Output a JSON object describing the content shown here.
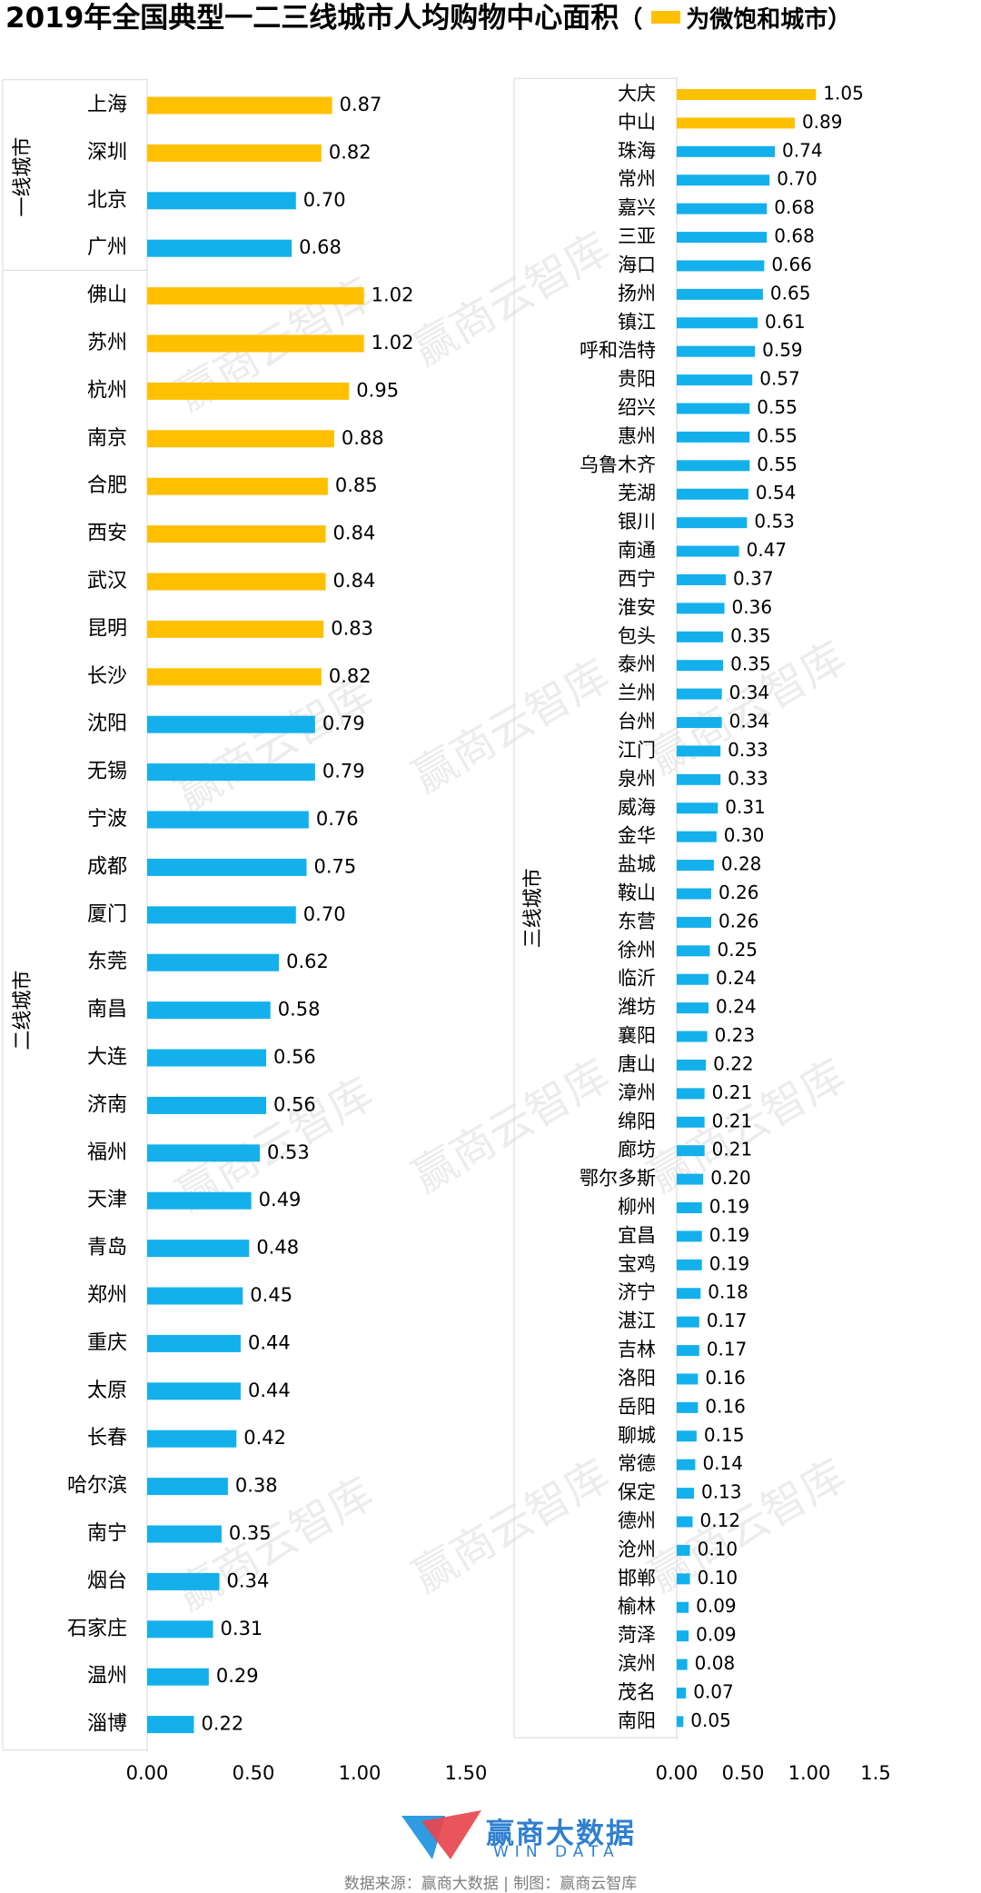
{
  "title": "2019年全国典型一二三线城市人均购物中心面积",
  "legend": {
    "paren_open": "（",
    "label": "为微饱和城市）",
    "color": "#FFC000"
  },
  "colors": {
    "saturated": "#FFC000",
    "normal": "#13B0EC"
  },
  "watermark": "赢商云智库",
  "brand": {
    "cn": "赢商大数据",
    "en": "WIN DATA"
  },
  "source": "数据来源：赢商大数据 | 制图：赢商云智库",
  "chart_data": [
    {
      "type": "bar",
      "orientation": "horizontal",
      "xlim": [
        0,
        1.5
      ],
      "xticks": [
        "0.00",
        "0.50",
        "1.00",
        "1.50"
      ],
      "groups": [
        {
          "label": "一线城市",
          "categories": [
            "上海",
            "深圳",
            "北京",
            "广州"
          ]
        },
        {
          "label": "二线城市",
          "categories": [
            "佛山",
            "苏州",
            "杭州",
            "南京",
            "合肥",
            "西安",
            "武汉",
            "昆明",
            "长沙",
            "沈阳",
            "无锡",
            "宁波",
            "成都",
            "厦门",
            "东莞",
            "南昌",
            "大连",
            "济南",
            "福州",
            "天津",
            "青岛",
            "郑州",
            "重庆",
            "太原",
            "长春",
            "哈尔滨",
            "南宁",
            "烟台",
            "石家庄",
            "温州",
            "淄博"
          ]
        }
      ],
      "categories": [
        "上海",
        "深圳",
        "北京",
        "广州",
        "佛山",
        "苏州",
        "杭州",
        "南京",
        "合肥",
        "西安",
        "武汉",
        "昆明",
        "长沙",
        "沈阳",
        "无锡",
        "宁波",
        "成都",
        "厦门",
        "东莞",
        "南昌",
        "大连",
        "济南",
        "福州",
        "天津",
        "青岛",
        "郑州",
        "重庆",
        "太原",
        "长春",
        "哈尔滨",
        "南宁",
        "烟台",
        "石家庄",
        "温州",
        "淄博"
      ],
      "values": [
        0.87,
        0.82,
        0.7,
        0.68,
        1.02,
        1.02,
        0.95,
        0.88,
        0.85,
        0.84,
        0.84,
        0.83,
        0.82,
        0.79,
        0.79,
        0.76,
        0.75,
        0.7,
        0.62,
        0.58,
        0.56,
        0.56,
        0.53,
        0.49,
        0.48,
        0.45,
        0.44,
        0.44,
        0.42,
        0.38,
        0.35,
        0.34,
        0.31,
        0.29,
        0.22
      ],
      "labels": [
        "0.87",
        "0.82",
        "0.70",
        "0.68",
        "1.02",
        "1.02",
        "0.95",
        "0.88",
        "0.85",
        "0.84",
        "0.84",
        "0.83",
        "0.82",
        "0.79",
        "0.79",
        "0.76",
        "0.75",
        "0.70",
        "0.62",
        "0.58",
        "0.56",
        "0.56",
        "0.53",
        "0.49",
        "0.48",
        "0.45",
        "0.44",
        "0.44",
        "0.42",
        "0.38",
        "0.35",
        "0.34",
        "0.31",
        "0.29",
        "0.22"
      ],
      "saturated": [
        true,
        true,
        false,
        false,
        true,
        true,
        true,
        true,
        true,
        true,
        true,
        true,
        true,
        false,
        false,
        false,
        false,
        false,
        false,
        false,
        false,
        false,
        false,
        false,
        false,
        false,
        false,
        false,
        false,
        false,
        false,
        false,
        false,
        false,
        false
      ]
    },
    {
      "type": "bar",
      "orientation": "horizontal",
      "xlim": [
        0,
        1.5
      ],
      "xticks": [
        "0.00",
        "0.50",
        "1.00",
        "1.5"
      ],
      "groups": [
        {
          "label": "三线城市",
          "categories": [
            "大庆",
            "中山",
            "珠海",
            "常州",
            "嘉兴",
            "三亚",
            "海口",
            "扬州",
            "镇江",
            "呼和浩特",
            "贵阳",
            "绍兴",
            "惠州",
            "乌鲁木齐",
            "芜湖",
            "银川",
            "南通",
            "西宁",
            "淮安",
            "包头",
            "泰州",
            "兰州",
            "台州",
            "江门",
            "泉州",
            "威海",
            "金华",
            "盐城",
            "鞍山",
            "东营",
            "徐州",
            "临沂",
            "潍坊",
            "襄阳",
            "唐山",
            "漳州",
            "绵阳",
            "廊坊",
            "鄂尔多斯",
            "柳州",
            "宜昌",
            "宝鸡",
            "济宁",
            "湛江",
            "吉林",
            "洛阳",
            "岳阳",
            "聊城",
            "常德",
            "保定",
            "德州",
            "沧州",
            "邯郸",
            "榆林",
            "菏泽",
            "滨州",
            "茂名",
            "南阳"
          ]
        }
      ],
      "categories": [
        "大庆",
        "中山",
        "珠海",
        "常州",
        "嘉兴",
        "三亚",
        "海口",
        "扬州",
        "镇江",
        "呼和浩特",
        "贵阳",
        "绍兴",
        "惠州",
        "乌鲁木齐",
        "芜湖",
        "银川",
        "南通",
        "西宁",
        "淮安",
        "包头",
        "泰州",
        "兰州",
        "台州",
        "江门",
        "泉州",
        "威海",
        "金华",
        "盐城",
        "鞍山",
        "东营",
        "徐州",
        "临沂",
        "潍坊",
        "襄阳",
        "唐山",
        "漳州",
        "绵阳",
        "廊坊",
        "鄂尔多斯",
        "柳州",
        "宜昌",
        "宝鸡",
        "济宁",
        "湛江",
        "吉林",
        "洛阳",
        "岳阳",
        "聊城",
        "常德",
        "保定",
        "德州",
        "沧州",
        "邯郸",
        "榆林",
        "菏泽",
        "滨州",
        "茂名",
        "南阳"
      ],
      "values": [
        1.05,
        0.89,
        0.74,
        0.7,
        0.68,
        0.68,
        0.66,
        0.65,
        0.61,
        0.59,
        0.57,
        0.55,
        0.55,
        0.55,
        0.54,
        0.53,
        0.47,
        0.37,
        0.36,
        0.35,
        0.35,
        0.34,
        0.34,
        0.33,
        0.33,
        0.31,
        0.3,
        0.28,
        0.26,
        0.26,
        0.25,
        0.24,
        0.24,
        0.23,
        0.22,
        0.21,
        0.21,
        0.21,
        0.2,
        0.19,
        0.19,
        0.19,
        0.18,
        0.17,
        0.17,
        0.16,
        0.16,
        0.15,
        0.14,
        0.13,
        0.12,
        0.1,
        0.1,
        0.09,
        0.09,
        0.08,
        0.07,
        0.05
      ],
      "labels": [
        "1.05",
        "0.89",
        "0.74",
        "0.70",
        "0.68",
        "0.68",
        "0.66",
        "0.65",
        "0.61",
        "0.59",
        "0.57",
        "0.55",
        "0.55",
        "0.55",
        "0.54",
        "0.53",
        "0.47",
        "0.37",
        "0.36",
        "0.35",
        "0.35",
        "0.34",
        "0.34",
        "0.33",
        "0.33",
        "0.31",
        "0.30",
        "0.28",
        "0.26",
        "0.26",
        "0.25",
        "0.24",
        "0.24",
        "0.23",
        "0.22",
        "0.21",
        "0.21",
        "0.21",
        "0.20",
        "0.19",
        "0.19",
        "0.19",
        "0.18",
        "0.17",
        "0.17",
        "0.16",
        "0.16",
        "0.15",
        "0.14",
        "0.13",
        "0.12",
        "0.10",
        "0.10",
        "0.09",
        "0.09",
        "0.08",
        "0.07",
        "0.05"
      ],
      "saturated": [
        true,
        true,
        false,
        false,
        false,
        false,
        false,
        false,
        false,
        false,
        false,
        false,
        false,
        false,
        false,
        false,
        false,
        false,
        false,
        false,
        false,
        false,
        false,
        false,
        false,
        false,
        false,
        false,
        false,
        false,
        false,
        false,
        false,
        false,
        false,
        false,
        false,
        false,
        false,
        false,
        false,
        false,
        false,
        false,
        false,
        false,
        false,
        false,
        false,
        false,
        false,
        false,
        false,
        false,
        false,
        false,
        false,
        false
      ]
    }
  ]
}
